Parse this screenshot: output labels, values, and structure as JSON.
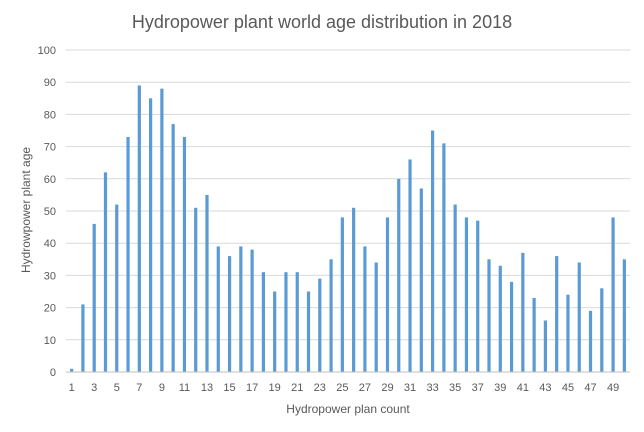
{
  "chart_data": {
    "type": "bar",
    "title": "Hydropower plant world age distribution in 2018",
    "xlabel": "Hydropower plan count",
    "ylabel": "Hydrowpower plant age",
    "ylim": [
      0,
      100
    ],
    "yticks": [
      0,
      10,
      20,
      30,
      40,
      50,
      60,
      70,
      80,
      90,
      100
    ],
    "grid": true,
    "legend": "none",
    "bar_color": "#5b9bd5",
    "categories": [
      1,
      2,
      3,
      4,
      5,
      6,
      7,
      8,
      9,
      10,
      11,
      12,
      13,
      14,
      15,
      16,
      17,
      18,
      19,
      20,
      21,
      22,
      23,
      24,
      25,
      26,
      27,
      28,
      29,
      30,
      31,
      32,
      33,
      34,
      35,
      36,
      37,
      38,
      39,
      40,
      41,
      42,
      43,
      44,
      45,
      46,
      47,
      48,
      49,
      50
    ],
    "xtick_labels_shown": [
      1,
      3,
      5,
      7,
      9,
      11,
      13,
      15,
      17,
      19,
      21,
      23,
      25,
      27,
      29,
      31,
      33,
      35,
      37,
      39,
      41,
      43,
      45,
      47,
      49
    ],
    "values": [
      1,
      21,
      46,
      62,
      52,
      73,
      89,
      85,
      88,
      77,
      73,
      51,
      55,
      39,
      36,
      39,
      38,
      31,
      25,
      31,
      31,
      25,
      29,
      35,
      48,
      51,
      39,
      34,
      48,
      60,
      66,
      57,
      75,
      71,
      52,
      48,
      47,
      35,
      33,
      28,
      37,
      23,
      16,
      36,
      24,
      34,
      19,
      26,
      48,
      35
    ]
  }
}
